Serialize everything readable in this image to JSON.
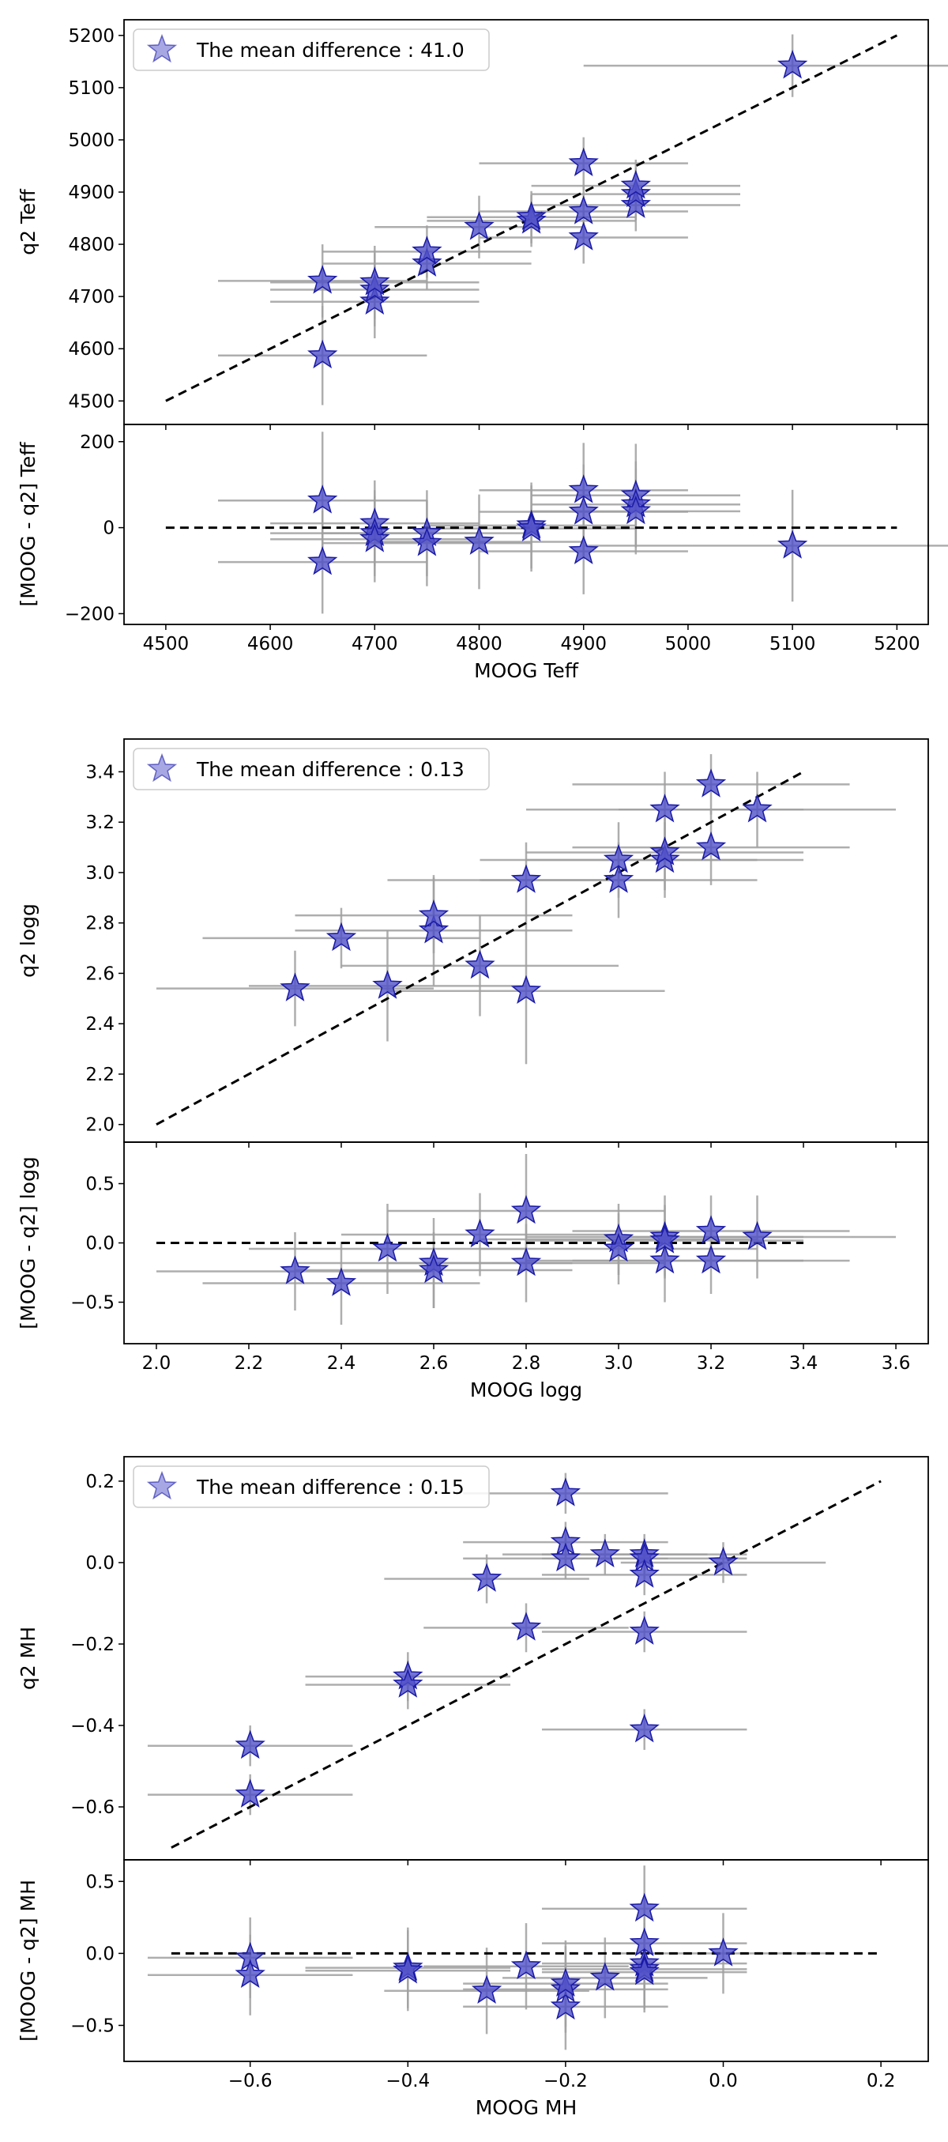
{
  "colors": {
    "marker_fill": "#5050c8",
    "marker_edge": "#1a1aa8",
    "errorbar": "#a0a0a0",
    "ref_line": "#000000"
  },
  "chart_data": [
    {
      "type": "scatter",
      "panel": "top",
      "legend": "The mean difference : 41.0",
      "legend_position": "top-left",
      "xlabel": "",
      "ylabel": "q2 Teff",
      "xlim": [
        4460,
        5230
      ],
      "ylim": [
        4455,
        5230
      ],
      "xticks": [
        4500,
        4600,
        4700,
        4800,
        4900,
        5000,
        5100,
        5200
      ],
      "yticks": [
        4500,
        4600,
        4700,
        4800,
        4900,
        5000,
        5100,
        5200
      ],
      "ytick_labels": [
        "4500",
        "4600",
        "4700",
        "4800",
        "4900",
        "5000",
        "5100",
        "5200"
      ],
      "show_xtick_labels": false,
      "ref_line": [
        [
          4500,
          4500
        ],
        [
          5200,
          5200
        ]
      ],
      "points": [
        {
          "x": 4650,
          "y": 4587,
          "xerr": 100,
          "yerr": 95
        },
        {
          "x": 4650,
          "y": 4730,
          "xerr": 100,
          "yerr": 70
        },
        {
          "x": 4700,
          "y": 4690,
          "xerr": 100,
          "yerr": 70
        },
        {
          "x": 4700,
          "y": 4713,
          "xerr": 100,
          "yerr": 70
        },
        {
          "x": 4700,
          "y": 4727,
          "xerr": 100,
          "yerr": 70
        },
        {
          "x": 4750,
          "y": 4763,
          "xerr": 100,
          "yerr": 50
        },
        {
          "x": 4750,
          "y": 4786,
          "xerr": 100,
          "yerr": 50
        },
        {
          "x": 4800,
          "y": 4833,
          "xerr": 100,
          "yerr": 60
        },
        {
          "x": 4850,
          "y": 4845,
          "xerr": 100,
          "yerr": 50
        },
        {
          "x": 4850,
          "y": 4852,
          "xerr": 100,
          "yerr": 50
        },
        {
          "x": 4900,
          "y": 4813,
          "xerr": 100,
          "yerr": 50
        },
        {
          "x": 4900,
          "y": 4863,
          "xerr": 100,
          "yerr": 50
        },
        {
          "x": 4900,
          "y": 4955,
          "xerr": 100,
          "yerr": 50
        },
        {
          "x": 4950,
          "y": 4875,
          "xerr": 100,
          "yerr": 50
        },
        {
          "x": 4950,
          "y": 4896,
          "xerr": 100,
          "yerr": 50
        },
        {
          "x": 4950,
          "y": 4912,
          "xerr": 100,
          "yerr": 50
        },
        {
          "x": 5100,
          "y": 5142,
          "xerr": 200,
          "yerr": 60
        }
      ]
    },
    {
      "type": "scatter",
      "panel": "residual",
      "legend": "",
      "xlabel": "MOOG Teff",
      "ylabel": "[MOOG - q2] Teff",
      "xlim": [
        4460,
        5230
      ],
      "ylim": [
        -225,
        240
      ],
      "xticks": [
        4500,
        4600,
        4700,
        4800,
        4900,
        5000,
        5100,
        5200
      ],
      "xtick_labels": [
        "4500",
        "4600",
        "4700",
        "4800",
        "4900",
        "5000",
        "5100",
        "5200"
      ],
      "yticks": [
        -200,
        0,
        200
      ],
      "ytick_labels": [
        "−200",
        "0",
        "200"
      ],
      "show_xtick_labels": true,
      "ref_line": [
        [
          4500,
          0
        ],
        [
          5200,
          0
        ]
      ],
      "points": [
        {
          "x": 4650,
          "y": 63,
          "xerr": 100,
          "yerr": 160
        },
        {
          "x": 4650,
          "y": -80,
          "xerr": 100,
          "yerr": 120
        },
        {
          "x": 4700,
          "y": 10,
          "xerr": 100,
          "yerr": 100
        },
        {
          "x": 4700,
          "y": -13,
          "xerr": 100,
          "yerr": 100
        },
        {
          "x": 4700,
          "y": -27,
          "xerr": 100,
          "yerr": 100
        },
        {
          "x": 4750,
          "y": -13,
          "xerr": 100,
          "yerr": 100
        },
        {
          "x": 4750,
          "y": -36,
          "xerr": 100,
          "yerr": 100
        },
        {
          "x": 4800,
          "y": -33,
          "xerr": 100,
          "yerr": 110
        },
        {
          "x": 4850,
          "y": 5,
          "xerr": 100,
          "yerr": 100
        },
        {
          "x": 4850,
          "y": -2,
          "xerr": 100,
          "yerr": 100
        },
        {
          "x": 4900,
          "y": 87,
          "xerr": 100,
          "yerr": 110
        },
        {
          "x": 4900,
          "y": 37,
          "xerr": 100,
          "yerr": 110
        },
        {
          "x": 4900,
          "y": -55,
          "xerr": 100,
          "yerr": 100
        },
        {
          "x": 4950,
          "y": 75,
          "xerr": 100,
          "yerr": 120
        },
        {
          "x": 4950,
          "y": 54,
          "xerr": 100,
          "yerr": 100
        },
        {
          "x": 4950,
          "y": 38,
          "xerr": 100,
          "yerr": 100
        },
        {
          "x": 5100,
          "y": -42,
          "xerr": 200,
          "yerr": 130
        }
      ]
    },
    {
      "type": "scatter",
      "panel": "top",
      "legend": "The mean difference : 0.13",
      "legend_position": "top-left",
      "xlabel": "",
      "ylabel": "q2 logg",
      "xlim": [
        1.93,
        3.67
      ],
      "ylim": [
        1.93,
        3.53
      ],
      "xticks": [
        2.0,
        2.2,
        2.4,
        2.6,
        2.8,
        3.0,
        3.2,
        3.4,
        3.6
      ],
      "yticks": [
        2.0,
        2.2,
        2.4,
        2.6,
        2.8,
        3.0,
        3.2,
        3.4
      ],
      "ytick_labels": [
        "2.0",
        "2.2",
        "2.4",
        "2.6",
        "2.8",
        "3.0",
        "3.2",
        "3.4"
      ],
      "show_xtick_labels": false,
      "ref_line": [
        [
          2.0,
          2.0
        ],
        [
          3.4,
          3.4
        ]
      ],
      "points": [
        {
          "x": 2.3,
          "y": 2.54,
          "xerr": 0.3,
          "yerr": 0.15
        },
        {
          "x": 2.4,
          "y": 2.74,
          "xerr": 0.3,
          "yerr": 0.12
        },
        {
          "x": 2.5,
          "y": 2.55,
          "xerr": 0.3,
          "yerr": 0.22
        },
        {
          "x": 2.6,
          "y": 2.77,
          "xerr": 0.3,
          "yerr": 0.22
        },
        {
          "x": 2.6,
          "y": 2.83,
          "xerr": 0.3,
          "yerr": 0.15
        },
        {
          "x": 2.7,
          "y": 2.63,
          "xerr": 0.3,
          "yerr": 0.2
        },
        {
          "x": 2.8,
          "y": 2.53,
          "xerr": 0.3,
          "yerr": 0.29
        },
        {
          "x": 2.8,
          "y": 2.97,
          "xerr": 0.3,
          "yerr": 0.15
        },
        {
          "x": 3.0,
          "y": 2.97,
          "xerr": 0.3,
          "yerr": 0.15
        },
        {
          "x": 3.0,
          "y": 3.05,
          "xerr": 0.3,
          "yerr": 0.15
        },
        {
          "x": 3.1,
          "y": 3.05,
          "xerr": 0.3,
          "yerr": 0.15
        },
        {
          "x": 3.1,
          "y": 3.08,
          "xerr": 0.3,
          "yerr": 0.15
        },
        {
          "x": 3.1,
          "y": 3.25,
          "xerr": 0.3,
          "yerr": 0.15
        },
        {
          "x": 3.2,
          "y": 3.1,
          "xerr": 0.3,
          "yerr": 0.15
        },
        {
          "x": 3.2,
          "y": 3.35,
          "xerr": 0.3,
          "yerr": 0.12
        },
        {
          "x": 3.3,
          "y": 3.25,
          "xerr": 0.3,
          "yerr": 0.15
        }
      ]
    },
    {
      "type": "scatter",
      "panel": "residual",
      "legend": "",
      "xlabel": "MOOG logg",
      "ylabel": "[MOOG - q2] logg",
      "xlim": [
        1.93,
        3.67
      ],
      "ylim": [
        -0.85,
        0.85
      ],
      "xticks": [
        2.0,
        2.2,
        2.4,
        2.6,
        2.8,
        3.0,
        3.2,
        3.4,
        3.6
      ],
      "xtick_labels": [
        "2.0",
        "2.2",
        "2.4",
        "2.6",
        "2.8",
        "3.0",
        "3.2",
        "3.4",
        "3.6"
      ],
      "yticks": [
        -0.5,
        0.0,
        0.5
      ],
      "ytick_labels": [
        "−0.5",
        "0.0",
        "0.5"
      ],
      "show_xtick_labels": true,
      "ref_line": [
        [
          2.0,
          0.0
        ],
        [
          3.4,
          0.0
        ]
      ],
      "points": [
        {
          "x": 2.3,
          "y": -0.24,
          "xerr": 0.3,
          "yerr": 0.33
        },
        {
          "x": 2.4,
          "y": -0.34,
          "xerr": 0.3,
          "yerr": 0.35
        },
        {
          "x": 2.5,
          "y": -0.05,
          "xerr": 0.3,
          "yerr": 0.38
        },
        {
          "x": 2.6,
          "y": -0.17,
          "xerr": 0.3,
          "yerr": 0.38
        },
        {
          "x": 2.6,
          "y": -0.23,
          "xerr": 0.3,
          "yerr": 0.32
        },
        {
          "x": 2.7,
          "y": 0.07,
          "xerr": 0.3,
          "yerr": 0.35
        },
        {
          "x": 2.8,
          "y": 0.27,
          "xerr": 0.3,
          "yerr": 0.48
        },
        {
          "x": 2.8,
          "y": -0.17,
          "xerr": 0.3,
          "yerr": 0.33
        },
        {
          "x": 3.0,
          "y": 0.03,
          "xerr": 0.3,
          "yerr": 0.3
        },
        {
          "x": 3.0,
          "y": -0.05,
          "xerr": 0.3,
          "yerr": 0.3
        },
        {
          "x": 3.1,
          "y": 0.05,
          "xerr": 0.3,
          "yerr": 0.35
        },
        {
          "x": 3.1,
          "y": 0.02,
          "xerr": 0.3,
          "yerr": 0.3
        },
        {
          "x": 3.1,
          "y": -0.15,
          "xerr": 0.3,
          "yerr": 0.35
        },
        {
          "x": 3.2,
          "y": 0.1,
          "xerr": 0.3,
          "yerr": 0.3
        },
        {
          "x": 3.2,
          "y": -0.15,
          "xerr": 0.3,
          "yerr": 0.28
        },
        {
          "x": 3.3,
          "y": 0.05,
          "xerr": 0.3,
          "yerr": 0.35
        }
      ]
    },
    {
      "type": "scatter",
      "panel": "top",
      "legend": "The mean difference : 0.15",
      "legend_position": "top-left",
      "xlabel": "",
      "ylabel": "q2 MH",
      "xlim": [
        -0.76,
        0.26
      ],
      "ylim": [
        -0.73,
        0.26
      ],
      "xticks": [
        -0.6,
        -0.4,
        -0.2,
        0.0,
        0.2
      ],
      "yticks": [
        -0.6,
        -0.4,
        -0.2,
        0.0,
        0.2
      ],
      "ytick_labels": [
        "−0.6",
        "−0.4",
        "−0.2",
        "0.0",
        "0.2"
      ],
      "show_xtick_labels": false,
      "ref_line": [
        [
          -0.7,
          -0.7
        ],
        [
          0.2,
          0.2
        ]
      ],
      "points": [
        {
          "x": -0.6,
          "y": -0.45,
          "xerr": 0.13,
          "yerr": 0.05
        },
        {
          "x": -0.6,
          "y": -0.57,
          "xerr": 0.13,
          "yerr": 0.05
        },
        {
          "x": -0.4,
          "y": -0.28,
          "xerr": 0.13,
          "yerr": 0.06
        },
        {
          "x": -0.4,
          "y": -0.3,
          "xerr": 0.13,
          "yerr": 0.06
        },
        {
          "x": -0.3,
          "y": -0.04,
          "xerr": 0.13,
          "yerr": 0.06
        },
        {
          "x": -0.25,
          "y": -0.16,
          "xerr": 0.13,
          "yerr": 0.06
        },
        {
          "x": -0.2,
          "y": 0.17,
          "xerr": 0.13,
          "yerr": 0.05
        },
        {
          "x": -0.2,
          "y": 0.05,
          "xerr": 0.13,
          "yerr": 0.05
        },
        {
          "x": -0.2,
          "y": 0.01,
          "xerr": 0.13,
          "yerr": 0.05
        },
        {
          "x": -0.15,
          "y": 0.02,
          "xerr": 0.13,
          "yerr": 0.05
        },
        {
          "x": -0.1,
          "y": 0.02,
          "xerr": 0.13,
          "yerr": 0.05
        },
        {
          "x": -0.1,
          "y": 0.01,
          "xerr": 0.13,
          "yerr": 0.05
        },
        {
          "x": -0.1,
          "y": -0.03,
          "xerr": 0.13,
          "yerr": 0.05
        },
        {
          "x": -0.1,
          "y": -0.17,
          "xerr": 0.13,
          "yerr": 0.05
        },
        {
          "x": -0.1,
          "y": -0.41,
          "xerr": 0.13,
          "yerr": 0.05
        },
        {
          "x": 0.0,
          "y": 0.0,
          "xerr": 0.13,
          "yerr": 0.05
        }
      ]
    },
    {
      "type": "scatter",
      "panel": "residual",
      "legend": "",
      "xlabel": "MOOG MH",
      "ylabel": "[MOOG - q2] MH",
      "xlim": [
        -0.76,
        0.26
      ],
      "ylim": [
        -0.75,
        0.65
      ],
      "xticks": [
        -0.6,
        -0.4,
        -0.2,
        0.0,
        0.2
      ],
      "xtick_labels": [
        "−0.6",
        "−0.4",
        "−0.2",
        "0.0",
        "0.2"
      ],
      "yticks": [
        -0.5,
        0.0,
        0.5
      ],
      "ytick_labels": [
        "−0.5",
        "0.0",
        "0.5"
      ],
      "show_xtick_labels": true,
      "ref_line": [
        [
          -0.7,
          0.0
        ],
        [
          0.2,
          0.0
        ]
      ],
      "points": [
        {
          "x": -0.6,
          "y": -0.03,
          "xerr": 0.13,
          "yerr": 0.28
        },
        {
          "x": -0.6,
          "y": -0.15,
          "xerr": 0.13,
          "yerr": 0.28
        },
        {
          "x": -0.4,
          "y": -0.1,
          "xerr": 0.13,
          "yerr": 0.28
        },
        {
          "x": -0.4,
          "y": -0.12,
          "xerr": 0.13,
          "yerr": 0.28
        },
        {
          "x": -0.3,
          "y": -0.26,
          "xerr": 0.13,
          "yerr": 0.3
        },
        {
          "x": -0.25,
          "y": -0.09,
          "xerr": 0.13,
          "yerr": 0.3
        },
        {
          "x": -0.2,
          "y": -0.37,
          "xerr": 0.13,
          "yerr": 0.3
        },
        {
          "x": -0.2,
          "y": -0.25,
          "xerr": 0.13,
          "yerr": 0.3
        },
        {
          "x": -0.2,
          "y": -0.21,
          "xerr": 0.13,
          "yerr": 0.3
        },
        {
          "x": -0.15,
          "y": -0.17,
          "xerr": 0.13,
          "yerr": 0.28
        },
        {
          "x": -0.1,
          "y": 0.31,
          "xerr": 0.13,
          "yerr": 0.3
        },
        {
          "x": -0.1,
          "y": 0.07,
          "xerr": 0.13,
          "yerr": 0.3
        },
        {
          "x": -0.1,
          "y": -0.07,
          "xerr": 0.13,
          "yerr": 0.28
        },
        {
          "x": -0.1,
          "y": -0.11,
          "xerr": 0.13,
          "yerr": 0.28
        },
        {
          "x": -0.1,
          "y": -0.13,
          "xerr": 0.13,
          "yerr": 0.28
        },
        {
          "x": 0.0,
          "y": 0.0,
          "xerr": 0.13,
          "yerr": 0.28
        }
      ]
    }
  ]
}
